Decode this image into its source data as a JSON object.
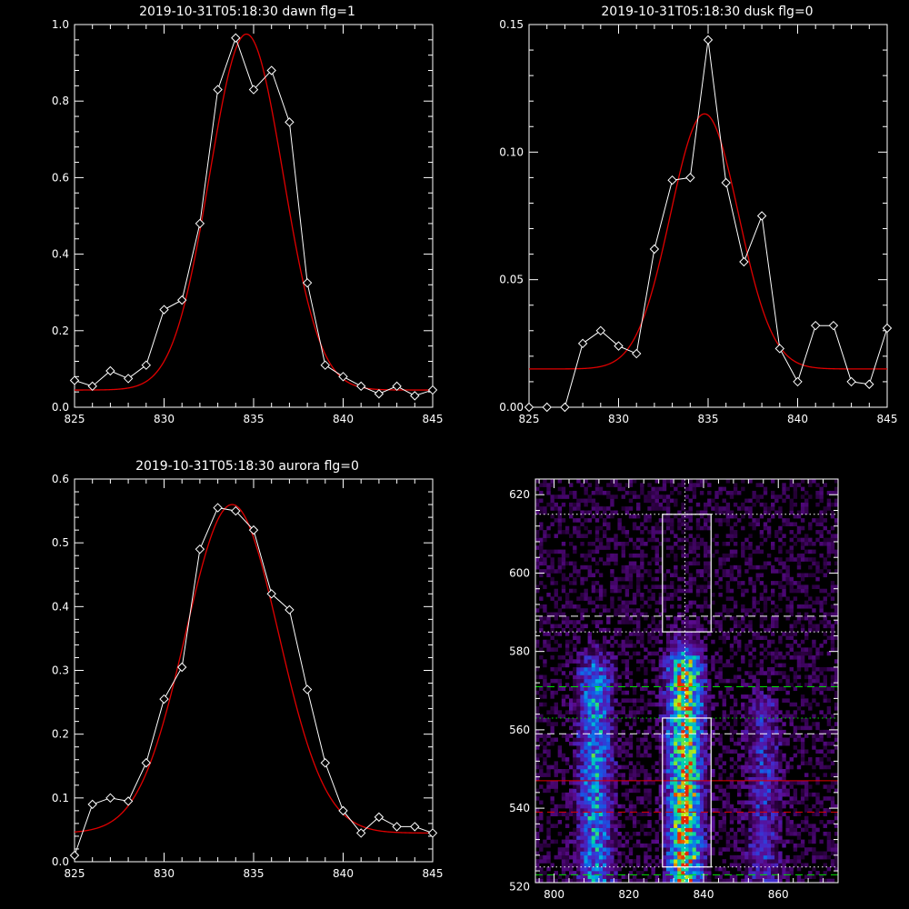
{
  "colors": {
    "background": "#000000",
    "data_line": "#ffffff",
    "fit_line": "#e00000"
  },
  "chart_data": [
    {
      "type": "line",
      "title": "2019-10-31T05:18:30 dawn flg=1",
      "xlim": [
        825,
        845
      ],
      "ylim": [
        0,
        1.0
      ],
      "xticks": [
        "825",
        "830",
        "835",
        "840",
        "845"
      ],
      "yticks": [
        "0.0",
        "0.2",
        "0.4",
        "0.6",
        "0.8",
        "1.0"
      ],
      "series": [
        {
          "role": "data",
          "marker": "diamond",
          "x": [
            825,
            826,
            827,
            828,
            829,
            830,
            831,
            832,
            833,
            834,
            835,
            836,
            837,
            838,
            839,
            840,
            841,
            842,
            843,
            844,
            845
          ],
          "y": [
            0.07,
            0.055,
            0.095,
            0.075,
            0.11,
            0.255,
            0.28,
            0.48,
            0.83,
            0.965,
            0.83,
            0.88,
            0.745,
            0.325,
            0.11,
            0.08,
            0.055,
            0.035,
            0.055,
            0.03,
            0.045
          ]
        },
        {
          "role": "fit",
          "amp": 0.93,
          "center": 834.6,
          "sigma": 2.05,
          "offset": 0.045
        }
      ]
    },
    {
      "type": "line",
      "title": "2019-10-31T05:18:30 dusk flg=0",
      "xlim": [
        825,
        845
      ],
      "ylim": [
        0,
        0.15
      ],
      "xticks": [
        "825",
        "830",
        "835",
        "840",
        "845"
      ],
      "yticks": [
        "0.00",
        "0.05",
        "0.10",
        "0.15"
      ],
      "series": [
        {
          "role": "data",
          "marker": "diamond",
          "x": [
            825,
            826,
            827,
            828,
            829,
            830,
            831,
            832,
            833,
            834,
            835,
            836,
            837,
            838,
            839,
            840,
            841,
            842,
            843,
            844,
            845
          ],
          "y": [
            -0.002,
            0.0,
            -0.003,
            0.025,
            0.03,
            0.024,
            0.021,
            0.062,
            0.089,
            0.09,
            0.144,
            0.088,
            0.057,
            0.075,
            0.023,
            0.01,
            0.032,
            0.032,
            0.01,
            0.009,
            0.031
          ]
        },
        {
          "role": "fit",
          "amp": 0.1,
          "center": 834.8,
          "sigma": 1.9,
          "offset": 0.015
        }
      ]
    },
    {
      "type": "line",
      "title": "2019-10-31T05:18:30 aurora flg=0",
      "xlim": [
        825,
        845
      ],
      "ylim": [
        0,
        0.6
      ],
      "xticks": [
        "825",
        "830",
        "835",
        "840",
        "845"
      ],
      "yticks": [
        "0.0",
        "0.1",
        "0.2",
        "0.3",
        "0.4",
        "0.5",
        "0.6"
      ],
      "series": [
        {
          "role": "data",
          "marker": "diamond",
          "x": [
            825,
            826,
            827,
            828,
            829,
            830,
            831,
            832,
            833,
            834,
            835,
            836,
            837,
            838,
            839,
            840,
            841,
            842,
            843,
            844,
            845
          ],
          "y": [
            0.01,
            0.09,
            0.1,
            0.095,
            0.155,
            0.255,
            0.305,
            0.49,
            0.555,
            0.55,
            0.52,
            0.42,
            0.395,
            0.27,
            0.155,
            0.08,
            0.045,
            0.07,
            0.055,
            0.055,
            0.045
          ]
        },
        {
          "role": "fit",
          "amp": 0.515,
          "center": 833.8,
          "sigma": 2.6,
          "offset": 0.045
        }
      ]
    },
    {
      "type": "heatmap",
      "xlim": [
        795,
        876
      ],
      "ylim": [
        521,
        624
      ],
      "xticks": [
        "800",
        "820",
        "840",
        "860"
      ],
      "yticks": [
        "520",
        "540",
        "560",
        "580",
        "600",
        "620"
      ],
      "columns": [
        {
          "center": 811,
          "intensity": 0.55,
          "ymax": 575
        },
        {
          "center": 835,
          "intensity": 0.95,
          "ymax": 577
        },
        {
          "center": 856,
          "intensity": 0.3,
          "ymax": 565
        }
      ],
      "boxes": [
        {
          "x": [
            829,
            842
          ],
          "y": [
            585,
            615
          ]
        },
        {
          "x": [
            829,
            842
          ],
          "y": [
            525,
            563
          ]
        }
      ],
      "vline": 835,
      "hlines": [
        {
          "y": 615,
          "style": "dotted",
          "color": "#ffffff"
        },
        {
          "y": 589,
          "style": "dashed",
          "color": "#ffffff"
        },
        {
          "y": 585,
          "style": "dotted",
          "color": "#ffffff"
        },
        {
          "y": 571,
          "style": "dashed",
          "color": "#00e000"
        },
        {
          "y": 563,
          "style": "dotted",
          "color": "#00e000"
        },
        {
          "y": 559,
          "style": "dashed",
          "color": "#ffffff"
        },
        {
          "y": 547,
          "style": "solid",
          "color": "#e00000"
        },
        {
          "y": 539,
          "style": "dashed",
          "color": "#e00000"
        },
        {
          "y": 525,
          "style": "dotted",
          "color": "#ffffff"
        },
        {
          "y": 523,
          "style": "dashed",
          "color": "#00e000"
        }
      ]
    }
  ]
}
